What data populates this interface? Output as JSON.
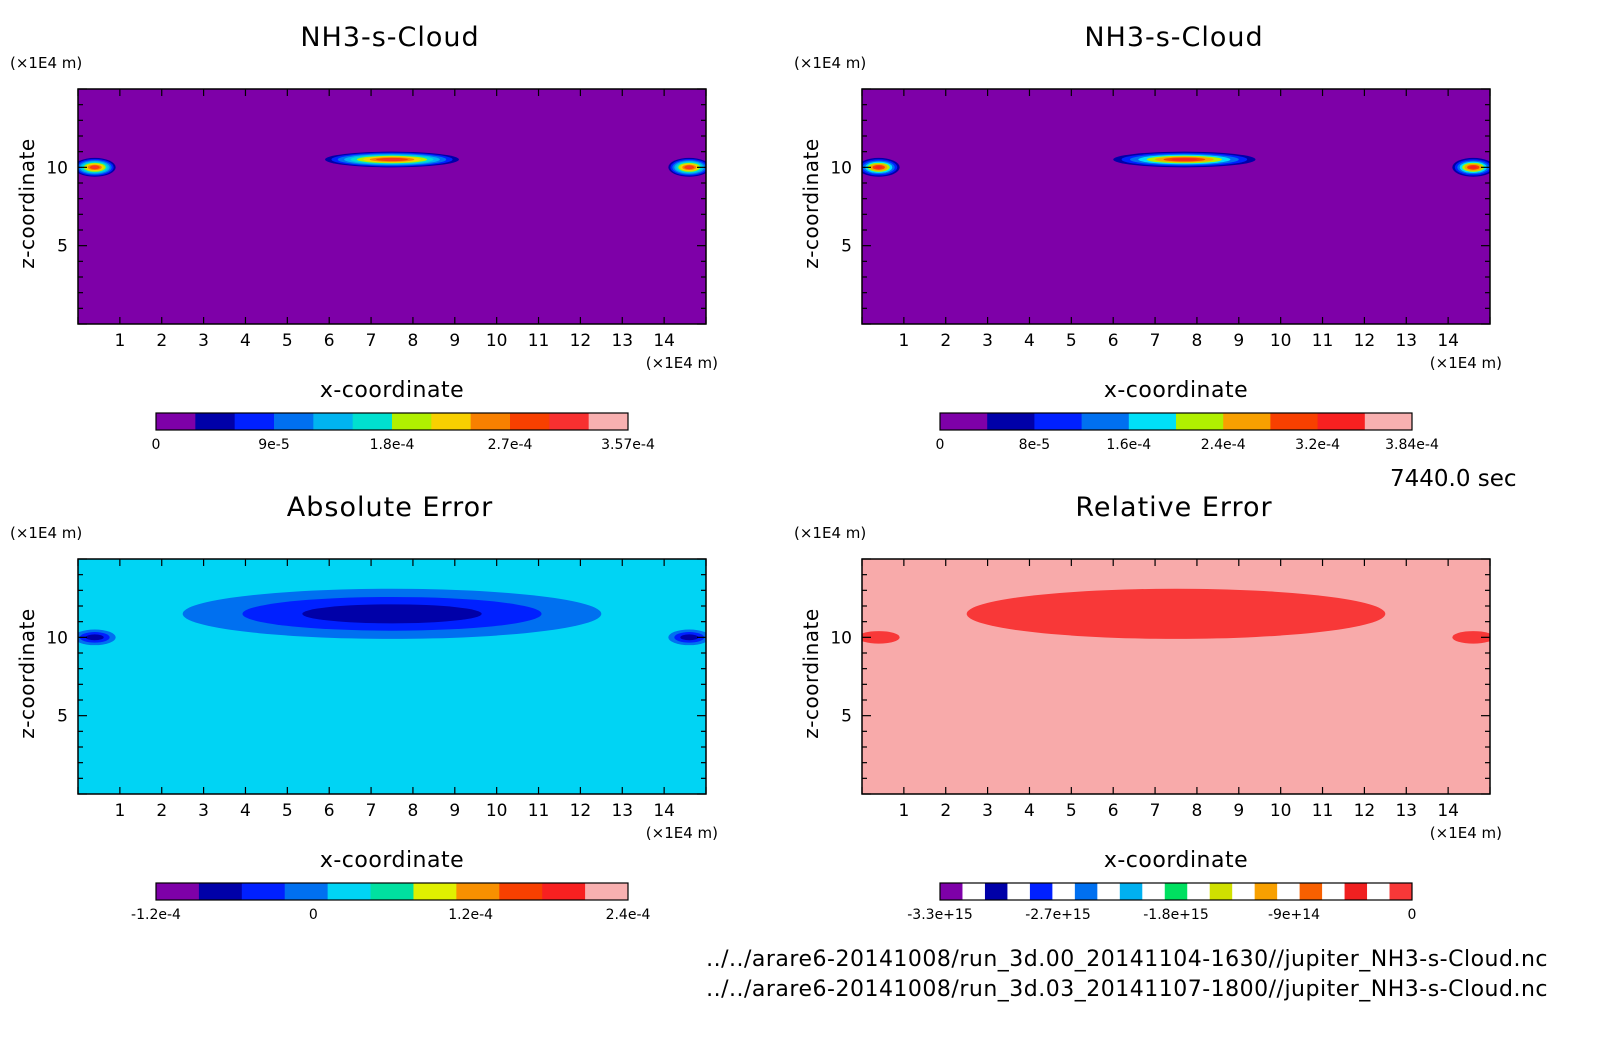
{
  "timestamp": "7440.0 sec",
  "files": [
    "../../arare6-20141008/run_3d.00_20141104-1630//jupiter_NH3-s-Cloud.nc",
    "../../arare6-20141008/run_3d.03_20141107-1800//jupiter_NH3-s-Cloud.nc"
  ],
  "chart_data": [
    {
      "type": "heatmap",
      "title": "NH3-s-Cloud",
      "xlabel": "x-coordinate",
      "ylabel": "z-coordinate",
      "x_unit": "(×1E4 m)",
      "y_unit": "(×1E4 m)",
      "xlim": [
        0,
        15
      ],
      "ylim": [
        0,
        15
      ],
      "x_ticks": [
        1,
        2,
        3,
        4,
        5,
        6,
        7,
        8,
        9,
        10,
        11,
        12,
        13,
        14
      ],
      "y_ticks": [
        5,
        10
      ],
      "background_color": "#7e00a8",
      "features": [
        {
          "x": 7.5,
          "z": 10.5,
          "half_width": 1.6,
          "half_height": 0.5,
          "peak": 0.000357
        },
        {
          "x": 0.4,
          "z": 10.0,
          "half_width": 0.5,
          "half_height": 0.6,
          "peak": 0.00025
        },
        {
          "x": 14.6,
          "z": 10.0,
          "half_width": 0.5,
          "half_height": 0.6,
          "peak": 0.00025
        }
      ],
      "colorbar": {
        "colors": [
          "#7e00a8",
          "#0000a8",
          "#0020ff",
          "#0070f0",
          "#00b4f0",
          "#00e0d0",
          "#b0f000",
          "#f8d000",
          "#f88000",
          "#f84000",
          "#f83030",
          "#f8b0b0"
        ],
        "labels": [
          "0",
          "9e-5",
          "1.8e-4",
          "2.7e-4",
          "3.57e-4"
        ]
      }
    },
    {
      "type": "heatmap",
      "title": "NH3-s-Cloud",
      "xlabel": "x-coordinate",
      "ylabel": "z-coordinate",
      "x_unit": "(×1E4 m)",
      "y_unit": "(×1E4 m)",
      "xlim": [
        0,
        15
      ],
      "ylim": [
        0,
        15
      ],
      "x_ticks": [
        1,
        2,
        3,
        4,
        5,
        6,
        7,
        8,
        9,
        10,
        11,
        12,
        13,
        14
      ],
      "y_ticks": [
        5,
        10
      ],
      "background_color": "#7e00a8",
      "features": [
        {
          "x": 7.7,
          "z": 10.5,
          "half_width": 1.7,
          "half_height": 0.5,
          "peak": 0.000384
        },
        {
          "x": 0.4,
          "z": 10.0,
          "half_width": 0.5,
          "half_height": 0.6,
          "peak": 0.00025
        },
        {
          "x": 14.6,
          "z": 10.0,
          "half_width": 0.5,
          "half_height": 0.6,
          "peak": 0.00025
        }
      ],
      "colorbar": {
        "colors": [
          "#7e00a8",
          "#0000a8",
          "#0020ff",
          "#0070f0",
          "#00e0f8",
          "#b0f000",
          "#f8a000",
          "#f84000",
          "#f82020",
          "#f8b0b0"
        ],
        "labels": [
          "0",
          "8e-5",
          "1.6e-4",
          "2.4e-4",
          "3.2e-4",
          "3.84e-4"
        ]
      }
    },
    {
      "type": "heatmap",
      "title": "Absolute Error",
      "xlabel": "x-coordinate",
      "ylabel": "z-coordinate",
      "x_unit": "(×1E4 m)",
      "y_unit": "(×1E4 m)",
      "xlim": [
        0,
        15
      ],
      "ylim": [
        0,
        15
      ],
      "x_ticks": [
        1,
        2,
        3,
        4,
        5,
        6,
        7,
        8,
        9,
        10,
        11,
        12,
        13,
        14
      ],
      "y_ticks": [
        5,
        10
      ],
      "background_color": "#00d4f4",
      "features": [
        {
          "x": 7.5,
          "z": 11.5,
          "half_width": 5.0,
          "half_height": 1.6,
          "peak": -3e-05
        },
        {
          "x": 0.4,
          "z": 10.0,
          "half_width": 0.5,
          "half_height": 0.5,
          "peak": -0.00012
        },
        {
          "x": 14.6,
          "z": 10.0,
          "half_width": 0.5,
          "half_height": 0.5,
          "peak": -0.00012
        }
      ],
      "colorbar": {
        "colors": [
          "#7e00a8",
          "#0000a8",
          "#0020ff",
          "#0070f0",
          "#00d4f4",
          "#00e0a0",
          "#e0f000",
          "#f89000",
          "#f84000",
          "#f82020",
          "#f8b0b0"
        ],
        "labels": [
          "-1.2e-4",
          "0",
          "1.2e-4",
          "2.4e-4"
        ]
      }
    },
    {
      "type": "heatmap",
      "title": "Relative Error",
      "xlabel": "x-coordinate",
      "ylabel": "z-coordinate",
      "x_unit": "(×1E4 m)",
      "y_unit": "(×1E4 m)",
      "xlim": [
        0,
        15
      ],
      "ylim": [
        0,
        15
      ],
      "x_ticks": [
        1,
        2,
        3,
        4,
        5,
        6,
        7,
        8,
        9,
        10,
        11,
        12,
        13,
        14
      ],
      "y_ticks": [
        5,
        10
      ],
      "background_color": "#f8aaaa",
      "features": [
        {
          "x": 7.5,
          "z": 11.5,
          "half_width": 5.0,
          "half_height": 1.6,
          "peak": -100000000000000.0
        },
        {
          "x": 0.4,
          "z": 10.0,
          "half_width": 0.5,
          "half_height": 0.4,
          "peak": -100000000000000.0
        },
        {
          "x": 14.6,
          "z": 10.0,
          "half_width": 0.5,
          "half_height": 0.4,
          "peak": -100000000000000.0
        }
      ],
      "colorbar": {
        "colors": [
          "#7e00a8",
          "#ffffff",
          "#0000a8",
          "#ffffff",
          "#0020ff",
          "#ffffff",
          "#0070f0",
          "#ffffff",
          "#00b0f0",
          "#ffffff",
          "#00e060",
          "#ffffff",
          "#d0e000",
          "#ffffff",
          "#f8a000",
          "#ffffff",
          "#f86000",
          "#ffffff",
          "#f02020",
          "#ffffff",
          "#f83838"
        ],
        "labels": [
          "-3.3e+15",
          "-2.7e+15",
          "-1.8e+15",
          "-9e+14",
          "0"
        ]
      }
    }
  ]
}
